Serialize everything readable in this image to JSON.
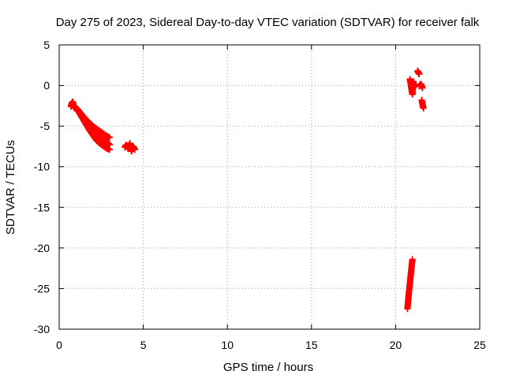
{
  "chart_data": {
    "type": "scatter",
    "title": "Day 275 of 2023, Sidereal Day-to-day VTEC variation (SDTVAR) for receiver falk",
    "xlabel": "GPS time / hours",
    "ylabel": "SDTVAR / TECUs",
    "xlim": [
      0,
      25
    ],
    "ylim": [
      -30,
      5
    ],
    "xticks": [
      0,
      5,
      10,
      15,
      20,
      25
    ],
    "yticks": [
      5,
      0,
      -5,
      -10,
      -15,
      -20,
      -25,
      -30
    ],
    "grid": true,
    "marker": "+",
    "series": [
      {
        "name": "SDTVAR",
        "color": "#ff0000",
        "segments": [
          {
            "x": [
              0.7,
              0.75,
              0.8,
              0.85,
              0.9
            ],
            "y": [
              -2.6,
              -2.2,
              -2.0,
              -2.4,
              -2.8
            ]
          },
          {
            "x": [
              1.0,
              1.2,
              1.4,
              1.6,
              1.8,
              2.0,
              2.2,
              2.4,
              2.6,
              2.8,
              3.0
            ],
            "y": [
              -2.7,
              -3.4,
              -4.1,
              -4.8,
              -5.5,
              -6.1,
              -6.7,
              -7.1,
              -7.4,
              -7.7,
              -7.9
            ]
          },
          {
            "x": [
              1.1,
              1.3,
              1.5,
              1.7,
              1.9,
              2.1,
              2.3,
              2.5,
              2.7,
              2.9,
              3.0
            ],
            "y": [
              -2.9,
              -3.5,
              -4.1,
              -4.7,
              -5.2,
              -5.7,
              -6.1,
              -6.5,
              -6.8,
              -7.1,
              -7.3
            ]
          },
          {
            "x": [
              1.2,
              1.4,
              1.6,
              1.8,
              2.0,
              2.2,
              2.4,
              2.6,
              2.8,
              3.0
            ],
            "y": [
              -3.2,
              -3.7,
              -4.2,
              -4.6,
              -5.0,
              -5.3,
              -5.6,
              -5.9,
              -6.2,
              -6.4
            ]
          },
          {
            "x": [
              3.9,
              4.0,
              4.1,
              4.2,
              4.3,
              4.4,
              4.5
            ],
            "y": [
              -7.6,
              -7.3,
              -7.8,
              -7.1,
              -8.1,
              -7.5,
              -7.9
            ]
          },
          {
            "x": [
              20.7,
              20.75,
              20.8,
              20.85,
              20.9,
              20.95,
              21.0
            ],
            "y": [
              -27.5,
              -26.4,
              -25.3,
              -24.3,
              -23.3,
              -22.3,
              -21.4
            ]
          },
          {
            "x": [
              20.85,
              20.9,
              20.95,
              21.0,
              21.05,
              21.1
            ],
            "y": [
              0.8,
              0.2,
              -0.5,
              -1.1,
              0.5,
              -0.2
            ]
          },
          {
            "x": [
              21.3,
              21.35,
              21.4
            ],
            "y": [
              1.8,
              1.6,
              1.4
            ]
          },
          {
            "x": [
              21.4,
              21.5,
              21.6
            ],
            "y": [
              -0.1,
              0.2,
              -0.3
            ]
          },
          {
            "x": [
              21.55,
              21.6,
              21.65
            ],
            "y": [
              -1.8,
              -2.3,
              -2.8
            ]
          }
        ]
      }
    ]
  }
}
